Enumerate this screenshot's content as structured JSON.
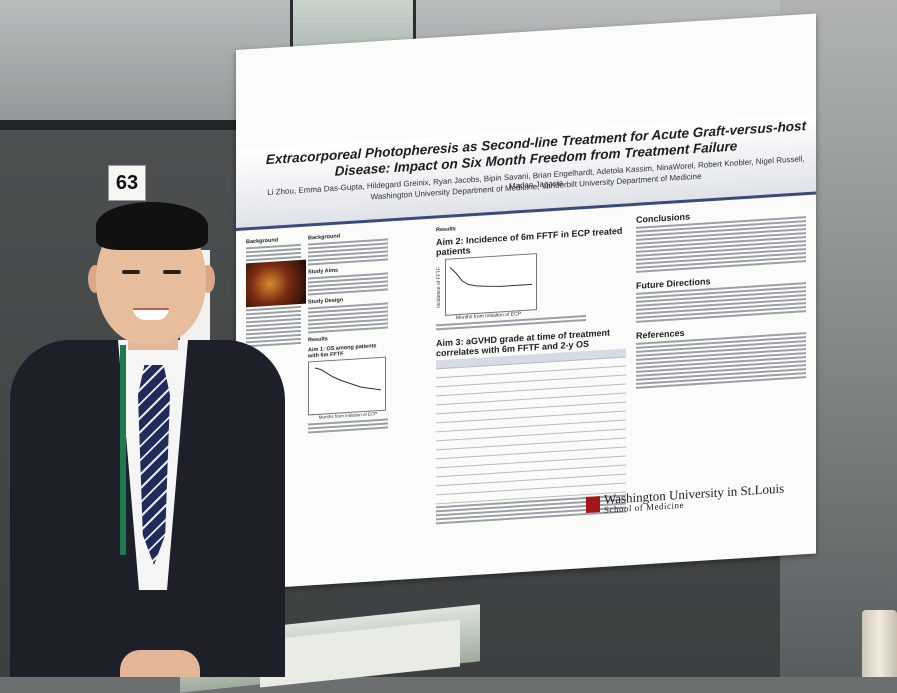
{
  "booth": {
    "number": "63"
  },
  "poster": {
    "title": "Extracorporeal Photopheresis as Second-line Treatment for Acute Graft-versus-host Disease: Impact on Six Month Freedom from Treatment Failure",
    "authors": "Li Zhou, Emma Das-Gupta, Hildegard Greinix, Ryan Jacobs, Bipin Savani, Brian Engelhardt, Adetola Kassim, NinaWorel, Robert Knobler, Nigel Russell, Madan Jagasia",
    "affiliation": "Washington University Department of Medicine, Vanderbilt University Department of Medicine",
    "col1": {
      "background": "Background",
      "aims": "Study Aims",
      "design": "Study Design",
      "results": "Results"
    },
    "aim1": "Aim 1: OS among patients with 6m FFTF",
    "aim1_xlabel": "Months from Initiation of ECP",
    "col2": {
      "results": "Results",
      "aim2": "Aim 2: Incidence of 6m FFTF in ECP treated patients",
      "aim2_xlabel": "Months from Initiation of ECP",
      "aim2_ylabel": "Incidence of FFTF",
      "aim3": "Aim 3: aGVHD grade at time of treatment correlates with 6m FFTF and 2-y OS"
    },
    "col3": {
      "conclusions": "Conclusions",
      "future": "Future Directions",
      "references": "References"
    },
    "logo_line1": "Washington University in St.Louis",
    "logo_line2": "School of Medicine"
  }
}
